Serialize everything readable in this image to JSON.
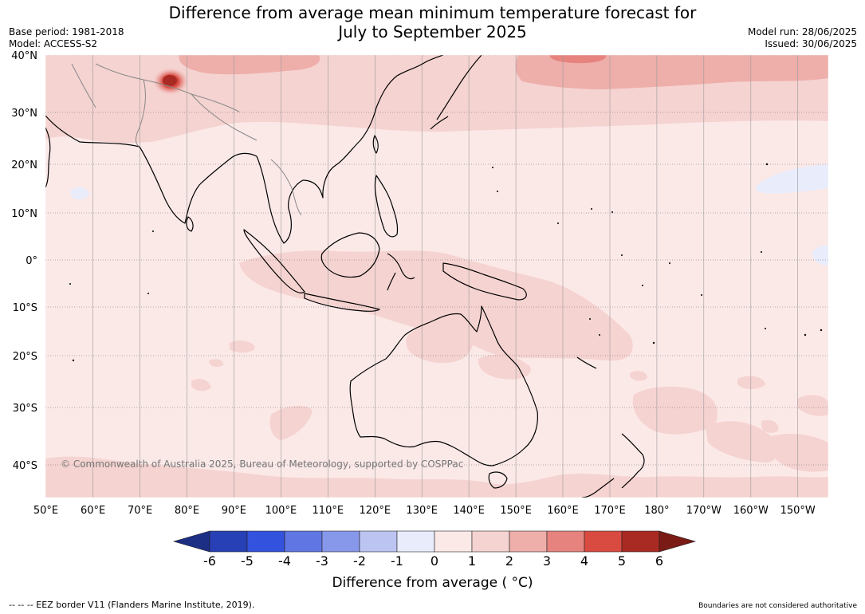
{
  "title_line1": "Difference from average mean minimum temperature forecast for",
  "title_line2": "July to September 2025",
  "base_period": "Base period: 1981-2018",
  "model": "Model: ACCESS-S2",
  "model_run": "Model run: 28/06/2025",
  "issued": "Issued: 30/06/2025",
  "copyright": "© Commonwealth of Australia 2025, Bureau of Meteorology, supported by COSPPac",
  "lat_labels": [
    "40°N",
    "30°N",
    "20°N",
    "10°N",
    "0°",
    "10°S",
    "20°S",
    "30°S",
    "40°S"
  ],
  "lon_labels": [
    "50°E",
    "60°E",
    "70°E",
    "80°E",
    "90°E",
    "100°E",
    "110°E",
    "120°E",
    "130°E",
    "140°E",
    "150°E",
    "160°E",
    "170°E",
    "180°",
    "170°W",
    "160°W",
    "150°W"
  ],
  "colorbar": {
    "ticks": [
      "-6",
      "-5",
      "-4",
      "-3",
      "-2",
      "-1",
      "0",
      "1",
      "2",
      "3",
      "4",
      "5",
      "6"
    ],
    "colors": [
      "#1c2f85",
      "#2740b5",
      "#3353de",
      "#5f76e3",
      "#8798ea",
      "#bcc5f2",
      "#e9ecfb",
      "#fbe9e8",
      "#f5d3d1",
      "#eeaeaa",
      "#e6837e",
      "#d94a40",
      "#a92a22",
      "#7a1b16"
    ],
    "label": "Difference from average ( °C)"
  },
  "legend_eez": "-- -- -- EEZ border V11 (Flanders Marine Institute, 2019).",
  "boundaries_note": "Boundaries are not considered authoritative"
}
